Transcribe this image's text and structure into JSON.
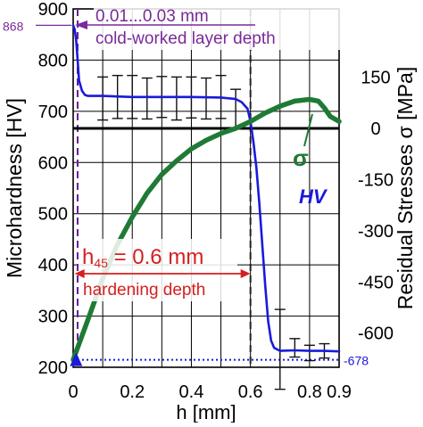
{
  "chart_data": {
    "type": "line",
    "xlabel": "h [mm]",
    "ylabel_left": "Microhardness [HV]",
    "ylabel_right": "Residual Stresses σ [MPa]",
    "xlim": [
      0,
      0.9
    ],
    "ylim_left": [
      200,
      900
    ],
    "ylim_right": [
      -700,
      350
    ],
    "xticks": [
      "0",
      "0.2",
      "0.4",
      "0.6",
      "0.8",
      "0.9"
    ],
    "xtick_values": [
      0,
      0.2,
      0.4,
      0.6,
      0.8,
      0.9
    ],
    "yticks_left": [
      "200",
      "300",
      "400",
      "500",
      "600",
      "700",
      "800",
      "900"
    ],
    "ytick_values_left": [
      200,
      300,
      400,
      500,
      600,
      700,
      800,
      900
    ],
    "yticks_right": [
      "150",
      "0",
      "-150",
      "-300",
      "-450",
      "-600"
    ],
    "ytick_values_right": [
      150,
      0,
      -150,
      -300,
      -450,
      -600
    ],
    "grid": true,
    "colors": {
      "hv": "#1a1adb",
      "sigma": "#1f7a35",
      "depth_annotation": "#7a2a9a",
      "hardening_annotation": "#d42020",
      "depth_line": "#6a1b9a"
    },
    "series": [
      {
        "name": "HV",
        "axis": "left",
        "x": [
          0,
          0.005,
          0.01,
          0.015,
          0.02,
          0.03,
          0.04,
          0.05,
          0.1,
          0.2,
          0.3,
          0.4,
          0.5,
          0.55,
          0.57,
          0.59,
          0.6,
          0.61,
          0.62,
          0.63,
          0.64,
          0.65,
          0.66,
          0.67,
          0.68,
          0.7,
          0.75,
          0.8,
          0.85,
          0.9
        ],
        "values": [
          868,
          860,
          840,
          800,
          760,
          740,
          732,
          730,
          730,
          728,
          728,
          728,
          727,
          724,
          718,
          705,
          680,
          640,
          590,
          520,
          440,
          360,
          290,
          252,
          238,
          232,
          233,
          232,
          232,
          231
        ]
      },
      {
        "name": "σ",
        "axis": "right",
        "x": [
          0,
          0.05,
          0.1,
          0.15,
          0.2,
          0.25,
          0.3,
          0.35,
          0.4,
          0.45,
          0.5,
          0.55,
          0.6,
          0.65,
          0.7,
          0.75,
          0.8,
          0.83,
          0.85,
          0.87,
          0.9
        ],
        "values": [
          -678,
          -560,
          -440,
          -340,
          -260,
          -190,
          -135,
          -95,
          -60,
          -35,
          -15,
          0,
          20,
          45,
          65,
          80,
          85,
          80,
          60,
          35,
          20
        ]
      }
    ],
    "error_bars": {
      "axis": "left",
      "x": [
        0.1,
        0.15,
        0.2,
        0.25,
        0.3,
        0.35,
        0.4,
        0.45,
        0.5,
        0.55,
        0.7,
        0.75,
        0.8,
        0.85
      ],
      "y": [
        725,
        728,
        728,
        725,
        728,
        725,
        727,
        725,
        728,
        705,
        235,
        238,
        228,
        232
      ],
      "err": [
        42,
        42,
        42,
        40,
        40,
        42,
        40,
        40,
        42,
        38,
        78,
        18,
        15,
        14
      ]
    },
    "marker": {
      "x": 0.01,
      "axis": "right",
      "value": -678,
      "shape": "triangle"
    },
    "reference_lines": [
      {
        "orientation": "vertical",
        "x": 0.015,
        "style": "dashed",
        "color": "depth_line"
      },
      {
        "orientation": "vertical",
        "x": 0.6,
        "style": "dashed",
        "color": "#222222"
      },
      {
        "orientation": "horizontal",
        "axis": "right",
        "value": 0,
        "style": "solid",
        "color": "#000000"
      },
      {
        "orientation": "horizontal",
        "axis": "right",
        "value": -678,
        "style": "dotted",
        "color": "hv"
      }
    ],
    "annotations": {
      "hv_peak_label": "868",
      "sigma_min_label": "-678",
      "hv_curve_label": "HV",
      "sigma_curve_label": "σ",
      "depth_range": "0.01...0.03 mm",
      "depth_caption": "cold-worked layer depth",
      "hardening_prefix": "h",
      "hardening_subscript": "45",
      "hardening_value": "= 0.6 mm",
      "hardening_caption": "hardening depth"
    }
  }
}
